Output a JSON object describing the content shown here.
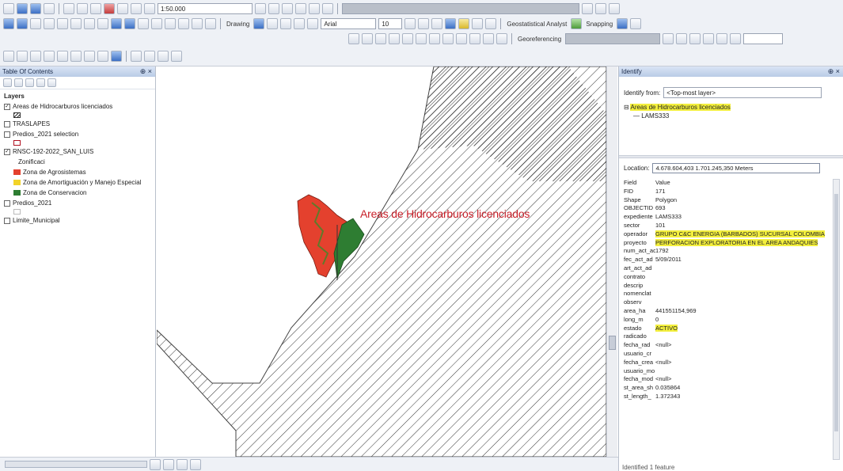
{
  "toolbar": {
    "zoom_value": "1:50.000",
    "drawing_label": "Drawing",
    "font_name": "Arial",
    "font_size": "10",
    "geostatistical_label": "Geostatistical Analyst",
    "snapping_label": "Snapping",
    "georeferencing_label": "Georeferencing"
  },
  "toc": {
    "title": "Table Of Contents",
    "layers_heading": "Layers",
    "items": [
      {
        "label": "Areas de Hidrocarburos licenciados",
        "checked": true
      },
      {
        "label": "TRASLAPES",
        "checked": false
      },
      {
        "label": "Predios_2021 selection",
        "checked": false
      },
      {
        "label": "RNSC-192-2022_SAN_LUIS",
        "checked": true
      },
      {
        "label": "Predios_2021",
        "checked": false
      },
      {
        "label": "Limite_Municipal",
        "checked": false
      }
    ],
    "zonificacion_label": "Zonificaci",
    "legend": [
      {
        "label": "Zona de Agrosistemas",
        "color": "#e4412e"
      },
      {
        "label": "Zona de Amortiguación y Manejo Especial",
        "color": "#f2d329"
      },
      {
        "label": "Zona de Conservacion",
        "color": "#2e7d32"
      }
    ]
  },
  "map": {
    "label": "Areas de Hidrocarburos licenciados"
  },
  "identify": {
    "title": "Identify",
    "from_label": "Identify from:",
    "from_value": "<Top-most layer>",
    "tree_layer": "Areas de Hidrocarburos licenciados",
    "tree_feature": "LAMS333",
    "location_label": "Location:",
    "location_value": "4.678.604,403  1.701.245,350 Meters",
    "header_field": "Field",
    "header_value": "Value",
    "attributes": [
      {
        "field": "FID",
        "value": "171"
      },
      {
        "field": "Shape",
        "value": "Polygon"
      },
      {
        "field": "OBJECTID",
        "value": "693"
      },
      {
        "field": "expediente",
        "value": "LAMS333"
      },
      {
        "field": "sector",
        "value": "101"
      },
      {
        "field": "operador",
        "value": "GRUPO C&C ENERGIA (BARBADOS) SUCURSAL COLOMBIA"
      },
      {
        "field": "proyecto",
        "value": "PERFORACION EXPLORATORIA EN EL AREA ANDAQUIES"
      },
      {
        "field": "num_act_ad",
        "value": "1792"
      },
      {
        "field": "fec_act_ad",
        "value": "5/09/2011"
      },
      {
        "field": "art_act_ad",
        "value": ""
      },
      {
        "field": "contrato",
        "value": ""
      },
      {
        "field": "descrip",
        "value": ""
      },
      {
        "field": "nomenclat",
        "value": ""
      },
      {
        "field": "observ",
        "value": ""
      },
      {
        "field": "area_ha",
        "value": "441551154,969"
      },
      {
        "field": "long_m",
        "value": "0"
      },
      {
        "field": "estado",
        "value": "ACTIVO"
      },
      {
        "field": "radicado",
        "value": ""
      },
      {
        "field": "fecha_rad",
        "value": "<null>"
      },
      {
        "field": "usuario_cr",
        "value": ""
      },
      {
        "field": "fecha_crea",
        "value": "<null>"
      },
      {
        "field": "usuario_mo",
        "value": ""
      },
      {
        "field": "fecha_mod",
        "value": "<null>"
      },
      {
        "field": "st_area_sh",
        "value": "0.035864"
      },
      {
        "field": "st_length_",
        "value": "1.372343"
      }
    ],
    "highlighted_fields": [
      "operador",
      "proyecto",
      "estado"
    ],
    "footer": "Identified 1 feature"
  },
  "colors": {
    "highlight": "#f3ef3d",
    "map_label": "#c8202a",
    "agro": "#e4412e",
    "conservacion": "#2e7d32"
  }
}
